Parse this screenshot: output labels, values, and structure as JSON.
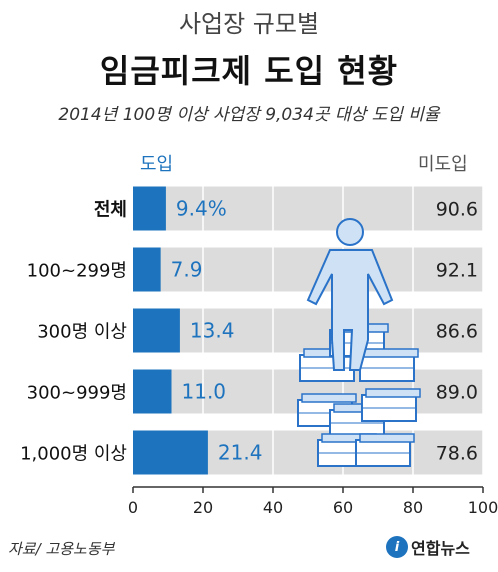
{
  "header": {
    "kicker": "사업장 규모별",
    "title": "임금피크제 도입 현황",
    "subtitle": "2014년 100명 이상 사업장 9,034곳 대상 도입 비율"
  },
  "legend": {
    "left": "도입",
    "right": "미도입"
  },
  "chart_data": {
    "type": "bar",
    "orientation": "horizontal",
    "stacked": true,
    "categories": [
      "전체",
      "100~299명",
      "300명 이상",
      "300~999명",
      "1,000명 이상"
    ],
    "series": [
      {
        "name": "도입",
        "values": [
          9.4,
          7.9,
          13.4,
          11.0,
          21.4
        ],
        "labels": [
          "9.4%",
          "7.9",
          "13.4",
          "11.0",
          "21.4"
        ],
        "color": "#1e73be"
      },
      {
        "name": "미도입",
        "values": [
          90.6,
          92.1,
          86.6,
          89.0,
          78.6
        ],
        "labels": [
          "90.6",
          "92.1",
          "86.6",
          "89.0",
          "78.6"
        ],
        "color": "#dcdcdc"
      }
    ],
    "xlim": [
      0,
      100
    ],
    "xticks": [
      "0",
      "20",
      "40",
      "60",
      "80",
      "100"
    ],
    "grid": true
  },
  "footer": {
    "source": "자료/ 고용노동부",
    "logo_mark": "i",
    "logo_text": "연합뉴스"
  }
}
